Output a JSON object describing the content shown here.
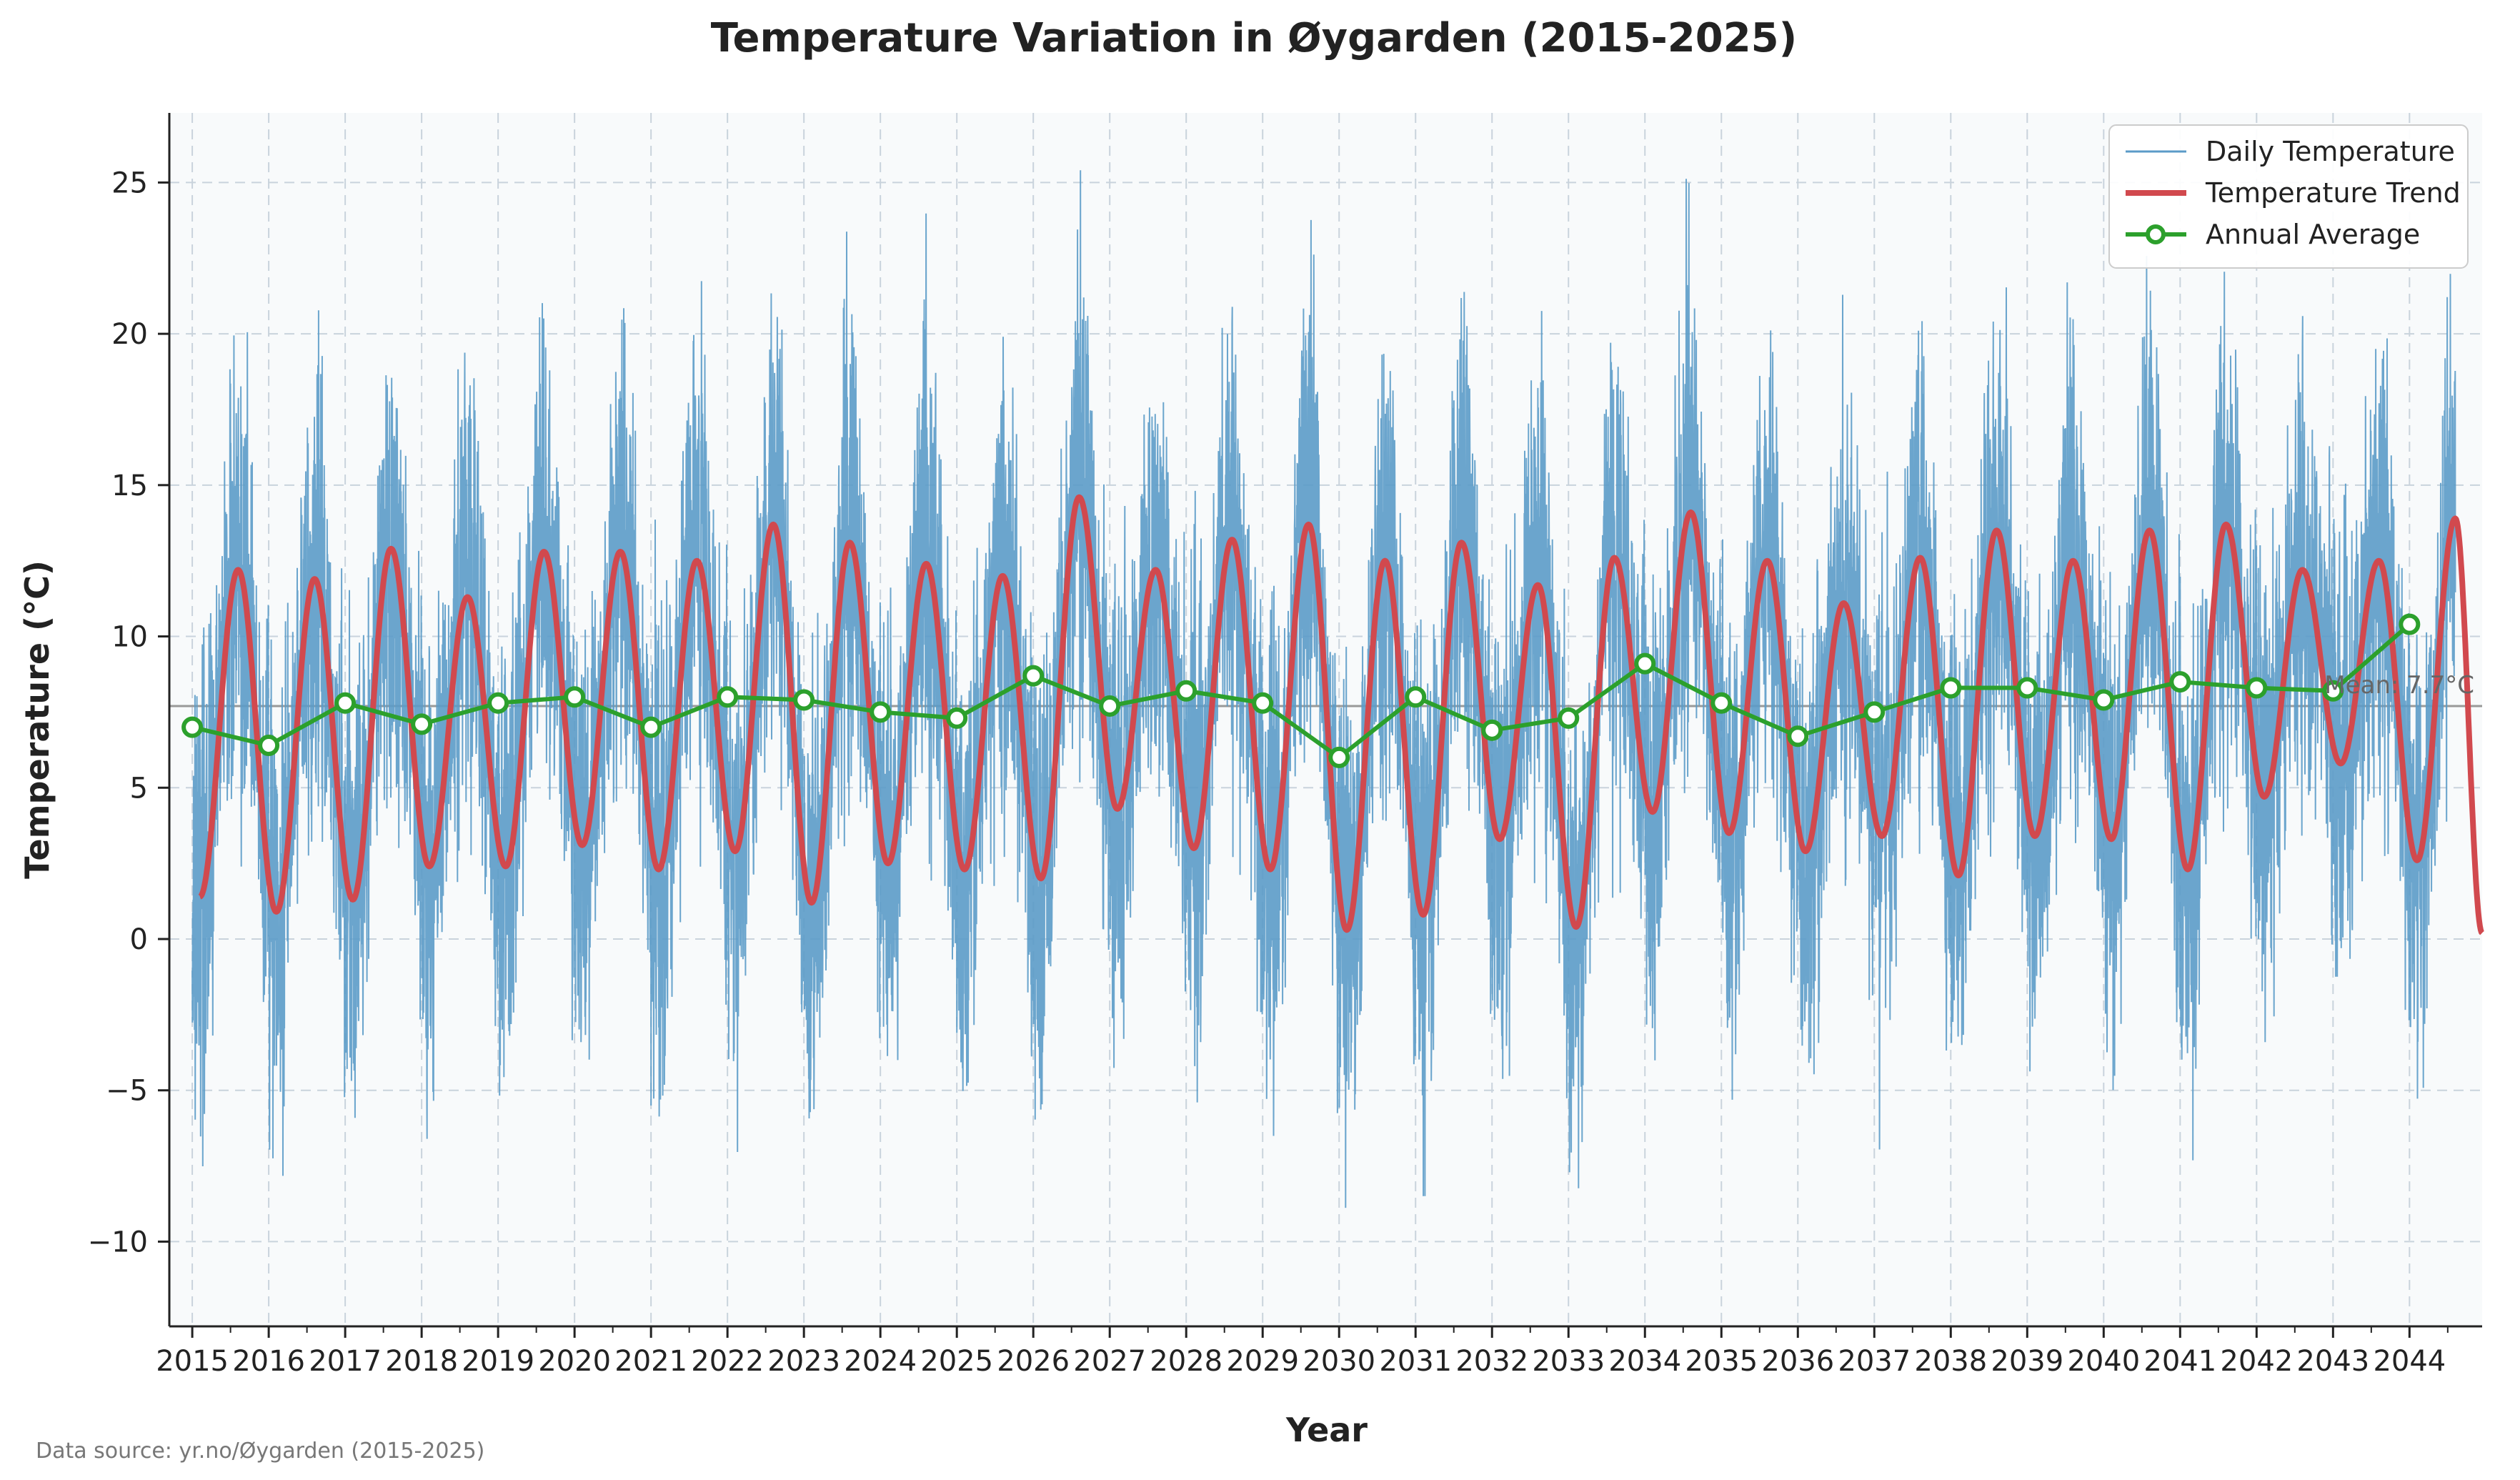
{
  "chart_data": {
    "type": "line",
    "title": "Temperature Variation in Øygarden (2015-2025)",
    "xlabel": "Year",
    "ylabel": "Temperature (°C)",
    "source_note": "Data source: yr.no/Øygarden (2015-2025)",
    "xlim": [
      2014.7,
      2044.95
    ],
    "ylim": [
      -12.8,
      27.3
    ],
    "x_ticks": [
      2015,
      2016,
      2017,
      2018,
      2019,
      2020,
      2021,
      2022,
      2023,
      2024,
      2025,
      2026,
      2027,
      2028,
      2029,
      2030,
      2031,
      2032,
      2033,
      2034,
      2035,
      2036,
      2037,
      2038,
      2039,
      2040,
      2041,
      2042,
      2043,
      2044
    ],
    "x_tick_labels": [
      "2015",
      "2016",
      "2017",
      "2018",
      "2019",
      "2020",
      "2021",
      "2022",
      "2023",
      "2024",
      "2025",
      "2026",
      "2027",
      "2028",
      "2029",
      "2030",
      "2031",
      "2032",
      "2033",
      "2034",
      "2035",
      "2036",
      "2037",
      "2038",
      "2039",
      "2040",
      "2041",
      "2042",
      "2043",
      "2044"
    ],
    "y_ticks": [
      -10,
      -5,
      0,
      5,
      10,
      15,
      20,
      25
    ],
    "y_tick_labels": [
      "−10",
      "−5",
      "0",
      "5",
      "10",
      "15",
      "20",
      "25"
    ],
    "grid": true,
    "legend_position": "top-right",
    "mean_line": {
      "value": 7.7,
      "label": "Mean: 7.7°C"
    },
    "series": [
      {
        "name": "Daily Temperature",
        "color": "#5b9bc8",
        "kind": "daily",
        "x_start": 2015.0,
        "x_end": 2044.6,
        "note": "approximately 10,800 daily readings; seasonal cycle with summer peaks about 17–25 and winter lows about −5 to −11"
      },
      {
        "name": "Temperature Trend",
        "color": "#d1494e",
        "peaks": [
          {
            "x": 2015.6,
            "y": 12.2
          },
          {
            "x": 2016.6,
            "y": 11.9
          },
          {
            "x": 2017.6,
            "y": 12.9
          },
          {
            "x": 2018.6,
            "y": 11.3
          },
          {
            "x": 2019.6,
            "y": 12.8
          },
          {
            "x": 2020.6,
            "y": 12.8
          },
          {
            "x": 2021.6,
            "y": 12.5
          },
          {
            "x": 2022.6,
            "y": 13.7
          },
          {
            "x": 2023.6,
            "y": 13.1
          },
          {
            "x": 2024.6,
            "y": 12.4
          },
          {
            "x": 2025.6,
            "y": 12.0
          },
          {
            "x": 2026.6,
            "y": 14.6
          },
          {
            "x": 2027.6,
            "y": 12.2
          },
          {
            "x": 2028.6,
            "y": 13.2
          },
          {
            "x": 2029.6,
            "y": 13.7
          },
          {
            "x": 2030.6,
            "y": 12.5
          },
          {
            "x": 2031.6,
            "y": 13.1
          },
          {
            "x": 2032.6,
            "y": 11.7
          },
          {
            "x": 2033.6,
            "y": 12.6
          },
          {
            "x": 2034.6,
            "y": 14.1
          },
          {
            "x": 2035.6,
            "y": 12.5
          },
          {
            "x": 2036.6,
            "y": 11.1
          },
          {
            "x": 2037.6,
            "y": 12.6
          },
          {
            "x": 2038.6,
            "y": 13.5
          },
          {
            "x": 2039.6,
            "y": 12.5
          },
          {
            "x": 2040.6,
            "y": 13.5
          },
          {
            "x": 2041.6,
            "y": 13.7
          },
          {
            "x": 2042.6,
            "y": 12.2
          },
          {
            "x": 2043.6,
            "y": 12.5
          },
          {
            "x": 2044.6,
            "y": 13.9
          }
        ],
        "troughs": [
          {
            "x": 2015.1,
            "y": 1.4
          },
          {
            "x": 2016.1,
            "y": 0.9
          },
          {
            "x": 2017.1,
            "y": 1.3
          },
          {
            "x": 2018.1,
            "y": 2.4
          },
          {
            "x": 2019.1,
            "y": 2.4
          },
          {
            "x": 2020.1,
            "y": 3.1
          },
          {
            "x": 2021.1,
            "y": 2.3
          },
          {
            "x": 2022.1,
            "y": 2.9
          },
          {
            "x": 2023.1,
            "y": 1.2
          },
          {
            "x": 2024.1,
            "y": 2.5
          },
          {
            "x": 2025.1,
            "y": 2.3
          },
          {
            "x": 2026.1,
            "y": 2.0
          },
          {
            "x": 2027.1,
            "y": 4.3
          },
          {
            "x": 2028.1,
            "y": 3.0
          },
          {
            "x": 2029.1,
            "y": 2.3
          },
          {
            "x": 2030.1,
            "y": 0.3
          },
          {
            "x": 2031.1,
            "y": 0.8
          },
          {
            "x": 2032.1,
            "y": 3.3
          },
          {
            "x": 2033.1,
            "y": 0.4
          },
          {
            "x": 2034.1,
            "y": 4.2
          },
          {
            "x": 2035.1,
            "y": 3.5
          },
          {
            "x": 2036.1,
            "y": 2.9
          },
          {
            "x": 2037.1,
            "y": 3.4
          },
          {
            "x": 2038.1,
            "y": 2.1
          },
          {
            "x": 2039.1,
            "y": 3.4
          },
          {
            "x": 2040.1,
            "y": 3.3
          },
          {
            "x": 2041.1,
            "y": 2.3
          },
          {
            "x": 2042.1,
            "y": 4.7
          },
          {
            "x": 2043.1,
            "y": 5.8
          },
          {
            "x": 2044.1,
            "y": 2.6
          }
        ],
        "end": {
          "x": 2044.95,
          "y": 0.2
        }
      },
      {
        "name": "Annual Average",
        "color": "#2ca02c",
        "x": [
          2015,
          2016,
          2017,
          2018,
          2019,
          2020,
          2021,
          2022,
          2023,
          2024,
          2025,
          2026,
          2027,
          2028,
          2029,
          2030,
          2031,
          2032,
          2033,
          2034,
          2035,
          2036,
          2037,
          2038,
          2039,
          2040,
          2041,
          2042,
          2043,
          2044
        ],
        "y": [
          7.0,
          6.4,
          7.8,
          7.1,
          7.8,
          8.0,
          7.0,
          8.0,
          7.9,
          7.5,
          7.3,
          8.7,
          7.7,
          8.2,
          7.8,
          6.0,
          8.0,
          6.9,
          7.3,
          9.1,
          7.8,
          6.7,
          7.5,
          8.3,
          8.3,
          7.9,
          8.5,
          8.3,
          8.2,
          10.4
        ]
      }
    ]
  }
}
